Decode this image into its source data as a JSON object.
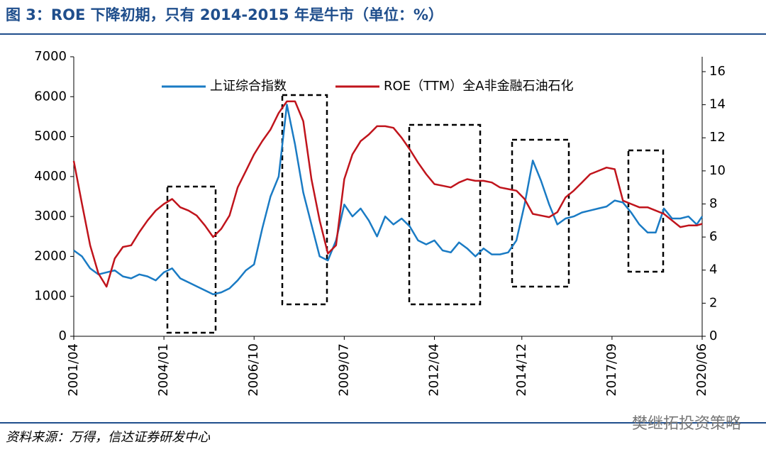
{
  "chart_data": {
    "type": "line",
    "title": "图 3：ROE 下降初期，只有 2014-2015 年是牛市（单位：%）",
    "source": "资料来源：万得，信达证券研发中心",
    "watermark": "樊继拓投资策略",
    "x": [
      "2001/04",
      "2001/07",
      "2001/10",
      "2002/01",
      "2002/04",
      "2002/07",
      "2002/10",
      "2003/01",
      "2003/04",
      "2003/07",
      "2003/10",
      "2004/01",
      "2004/04",
      "2004/07",
      "2004/10",
      "2005/01",
      "2005/04",
      "2005/07",
      "2005/10",
      "2006/01",
      "2006/04",
      "2006/07",
      "2006/10",
      "2007/01",
      "2007/04",
      "2007/07",
      "2007/10",
      "2008/01",
      "2008/04",
      "2008/07",
      "2008/10",
      "2009/01",
      "2009/04",
      "2009/07",
      "2009/10",
      "2010/01",
      "2010/04",
      "2010/07",
      "2010/10",
      "2011/01",
      "2011/04",
      "2011/07",
      "2011/10",
      "2012/01",
      "2012/04",
      "2012/07",
      "2012/10",
      "2013/01",
      "2013/04",
      "2013/07",
      "2013/10",
      "2014/01",
      "2014/04",
      "2014/07",
      "2014/10",
      "2015/01",
      "2015/04",
      "2015/07",
      "2015/10",
      "2016/01",
      "2016/04",
      "2016/07",
      "2016/10",
      "2017/01",
      "2017/04",
      "2017/07",
      "2017/10",
      "2018/01",
      "2018/04",
      "2018/07",
      "2018/10",
      "2019/01",
      "2019/04",
      "2019/07",
      "2019/10",
      "2020/01",
      "2020/04",
      "2020/06"
    ],
    "series": [
      {
        "name": "上证综合指数",
        "color": "#1a7bc4",
        "axis": "y",
        "values": [
          2150,
          2000,
          1700,
          1550,
          1600,
          1650,
          1500,
          1450,
          1550,
          1500,
          1400,
          1600,
          1700,
          1450,
          1350,
          1250,
          1150,
          1050,
          1100,
          1200,
          1400,
          1650,
          1800,
          2700,
          3500,
          4000,
          5800,
          4800,
          3600,
          2800,
          2000,
          1900,
          2400,
          3300,
          3000,
          3200,
          2900,
          2500,
          3000,
          2800,
          2950,
          2750,
          2400,
          2300,
          2400,
          2150,
          2100,
          2350,
          2200,
          2000,
          2200,
          2050,
          2050,
          2100,
          2400,
          3300,
          4400,
          3900,
          3300,
          2800,
          2950,
          3000,
          3100,
          3150,
          3200,
          3250,
          3400,
          3350,
          3100,
          2800,
          2600,
          2600,
          3200,
          2950,
          2950,
          3000,
          2800,
          3000
        ]
      },
      {
        "name": "ROE（TTM）全A非金融石油石化",
        "color": "#c0141c",
        "axis": "y2",
        "values": [
          10.6,
          8,
          5.5,
          3.8,
          3.0,
          4.7,
          5.4,
          5.5,
          6.3,
          7.0,
          7.6,
          8.0,
          8.3,
          7.8,
          7.6,
          7.3,
          6.7,
          6.0,
          6.5,
          7.3,
          9.0,
          10.0,
          11.0,
          11.8,
          12.5,
          13.5,
          14.2,
          14.2,
          13.0,
          9.5,
          7.0,
          5.0,
          5.5,
          9.5,
          11.0,
          11.8,
          12.2,
          12.7,
          12.7,
          12.6,
          12.0,
          11.3,
          10.5,
          9.8,
          9.2,
          9.1,
          9.0,
          9.3,
          9.5,
          9.4,
          9.4,
          9.3,
          9.0,
          8.9,
          8.8,
          8.3,
          7.4,
          7.3,
          7.2,
          7.5,
          8.4,
          8.8,
          9.3,
          9.8,
          10.0,
          10.2,
          10.1,
          8.2,
          8.0,
          7.8,
          7.8,
          7.6,
          7.4,
          7.0,
          6.6,
          6.7,
          6.7,
          6.8
        ]
      }
    ],
    "xlim": [
      "2001/04",
      "2020/06"
    ],
    "xticks": [
      "2001/04",
      "2004/01",
      "2006/10",
      "2009/07",
      "2012/04",
      "2014/12",
      "2017/09",
      "2020/06"
    ],
    "ylim": [
      0,
      7000
    ],
    "yticks": [
      0,
      1000,
      2000,
      3000,
      4000,
      5000,
      6000,
      7000
    ],
    "y2lim": [
      0,
      16.9
    ],
    "y2ticks": [
      0,
      2,
      4,
      6,
      8,
      10,
      12,
      14,
      16
    ]
  }
}
